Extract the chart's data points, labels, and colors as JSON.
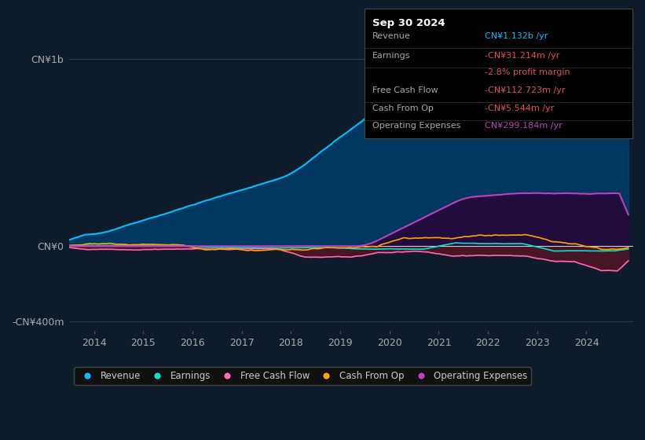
{
  "bg_color": "#0d1b2a",
  "plot_bg_color": "#0d1b2a",
  "x_ticks": [
    2014,
    2015,
    2016,
    2017,
    2018,
    2019,
    2020,
    2021,
    2022,
    2023,
    2024
  ],
  "ylim": [
    -450000000,
    1250000000
  ],
  "y_ticks": [
    1000000000,
    0,
    -400000000
  ],
  "y_tick_labels": [
    "CN¥1b",
    "CN¥0",
    "-CN¥400m"
  ],
  "info_box": {
    "title": "Sep 30 2024",
    "rows": [
      {
        "label": "Revenue",
        "value": "CN¥1.132b /yr",
        "value_color": "#00bfff"
      },
      {
        "label": "Earnings",
        "value": "-CN¥31.214m /yr",
        "value_color": "#e05050"
      },
      {
        "label": "",
        "value": "-2.8% profit margin",
        "value_color": "#e05050"
      },
      {
        "label": "Free Cash Flow",
        "value": "-CN¥112.723m /yr",
        "value_color": "#e05050"
      },
      {
        "label": "Cash From Op",
        "value": "-CN¥5.544m /yr",
        "value_color": "#e05050"
      },
      {
        "label": "Operating Expenses",
        "value": "CN¥299.184m /yr",
        "value_color": "#bf40bf"
      }
    ]
  },
  "legend_items": [
    {
      "label": "Revenue",
      "color": "#00bfff"
    },
    {
      "label": "Earnings",
      "color": "#00e5cc"
    },
    {
      "label": "Free Cash Flow",
      "color": "#ff69b4"
    },
    {
      "label": "Cash From Op",
      "color": "#ffa500"
    },
    {
      "label": "Operating Expenses",
      "color": "#bf40bf"
    }
  ]
}
